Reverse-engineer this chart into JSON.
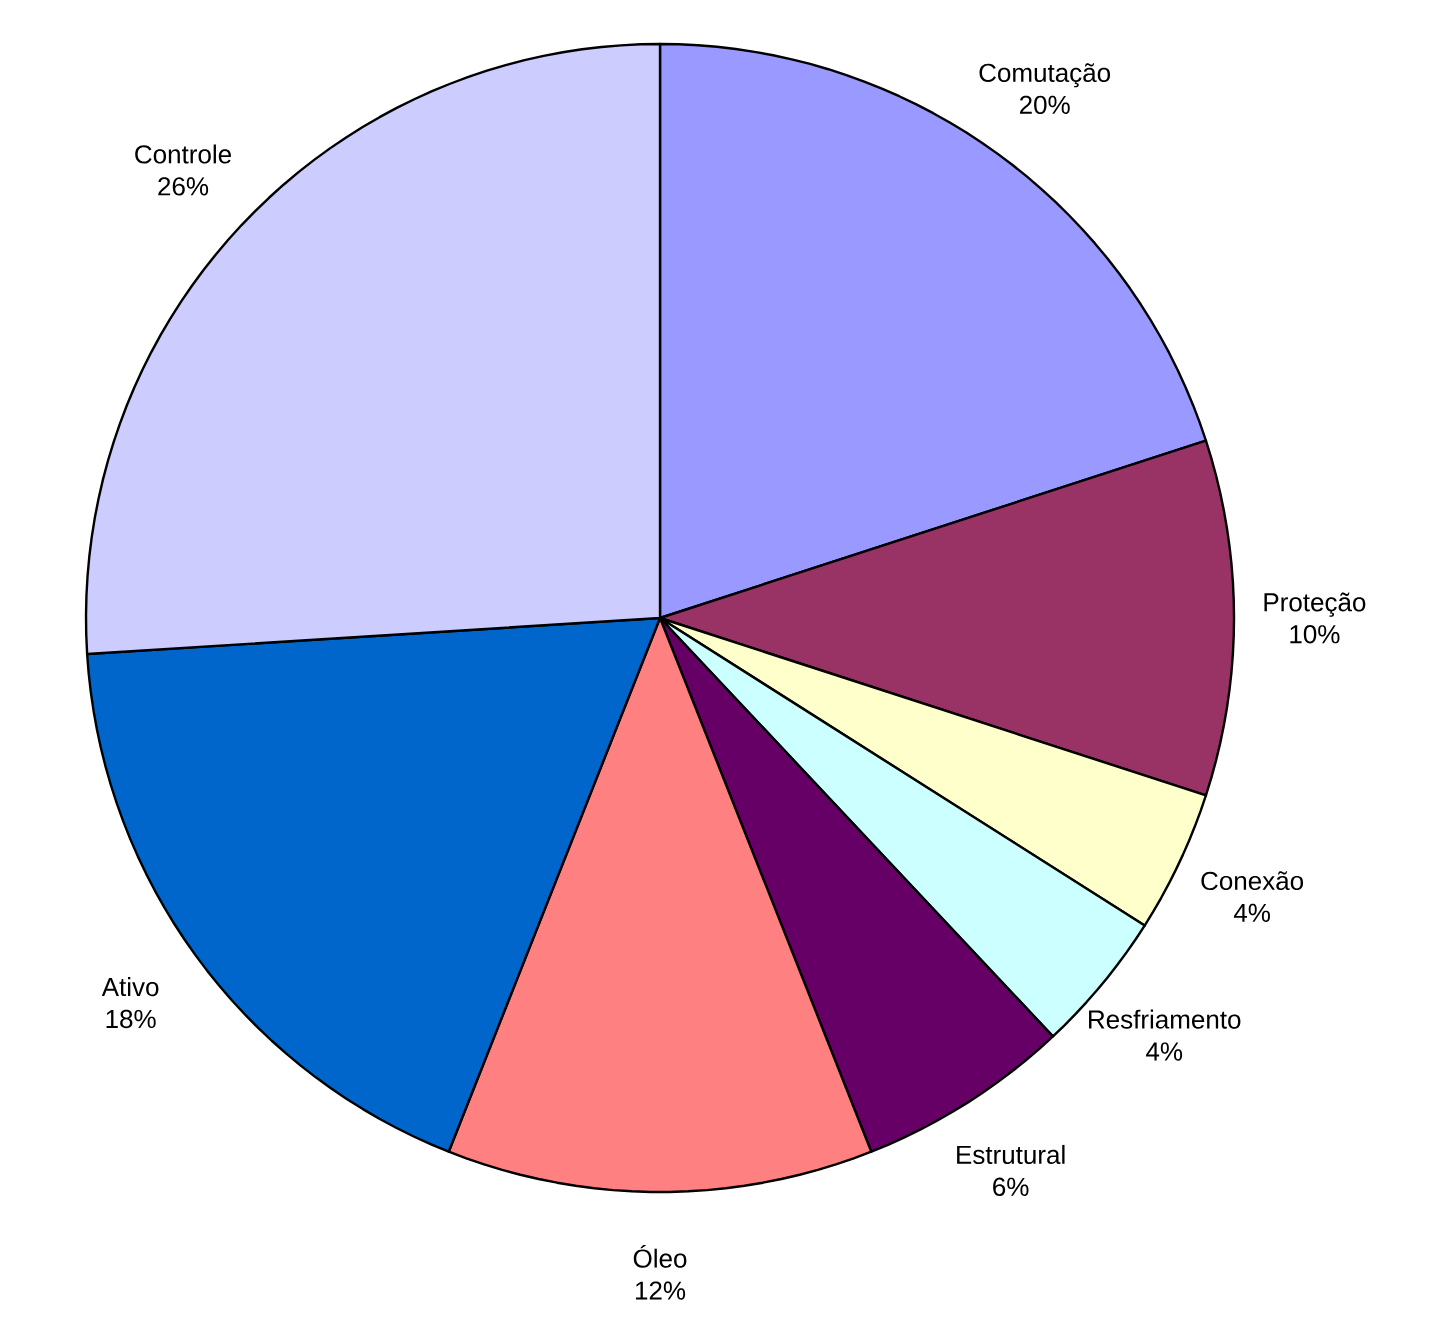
{
  "chart_data": {
    "type": "pie",
    "categories": [
      "Comutação",
      "Proteção",
      "Conexão",
      "Resfriamento",
      "Estrutural",
      "Óleo",
      "Ativo",
      "Controle"
    ],
    "values": [
      20,
      10,
      4,
      4,
      6,
      12,
      18,
      26
    ],
    "value_labels": [
      "20%",
      "10%",
      "4%",
      "4%",
      "6%",
      "12%",
      "18%",
      "26%"
    ],
    "colors": [
      "#9999ff",
      "#993366",
      "#ffffcc",
      "#ccffff",
      "#660066",
      "#ff8080",
      "#0066cc",
      "#ccccff"
    ]
  }
}
